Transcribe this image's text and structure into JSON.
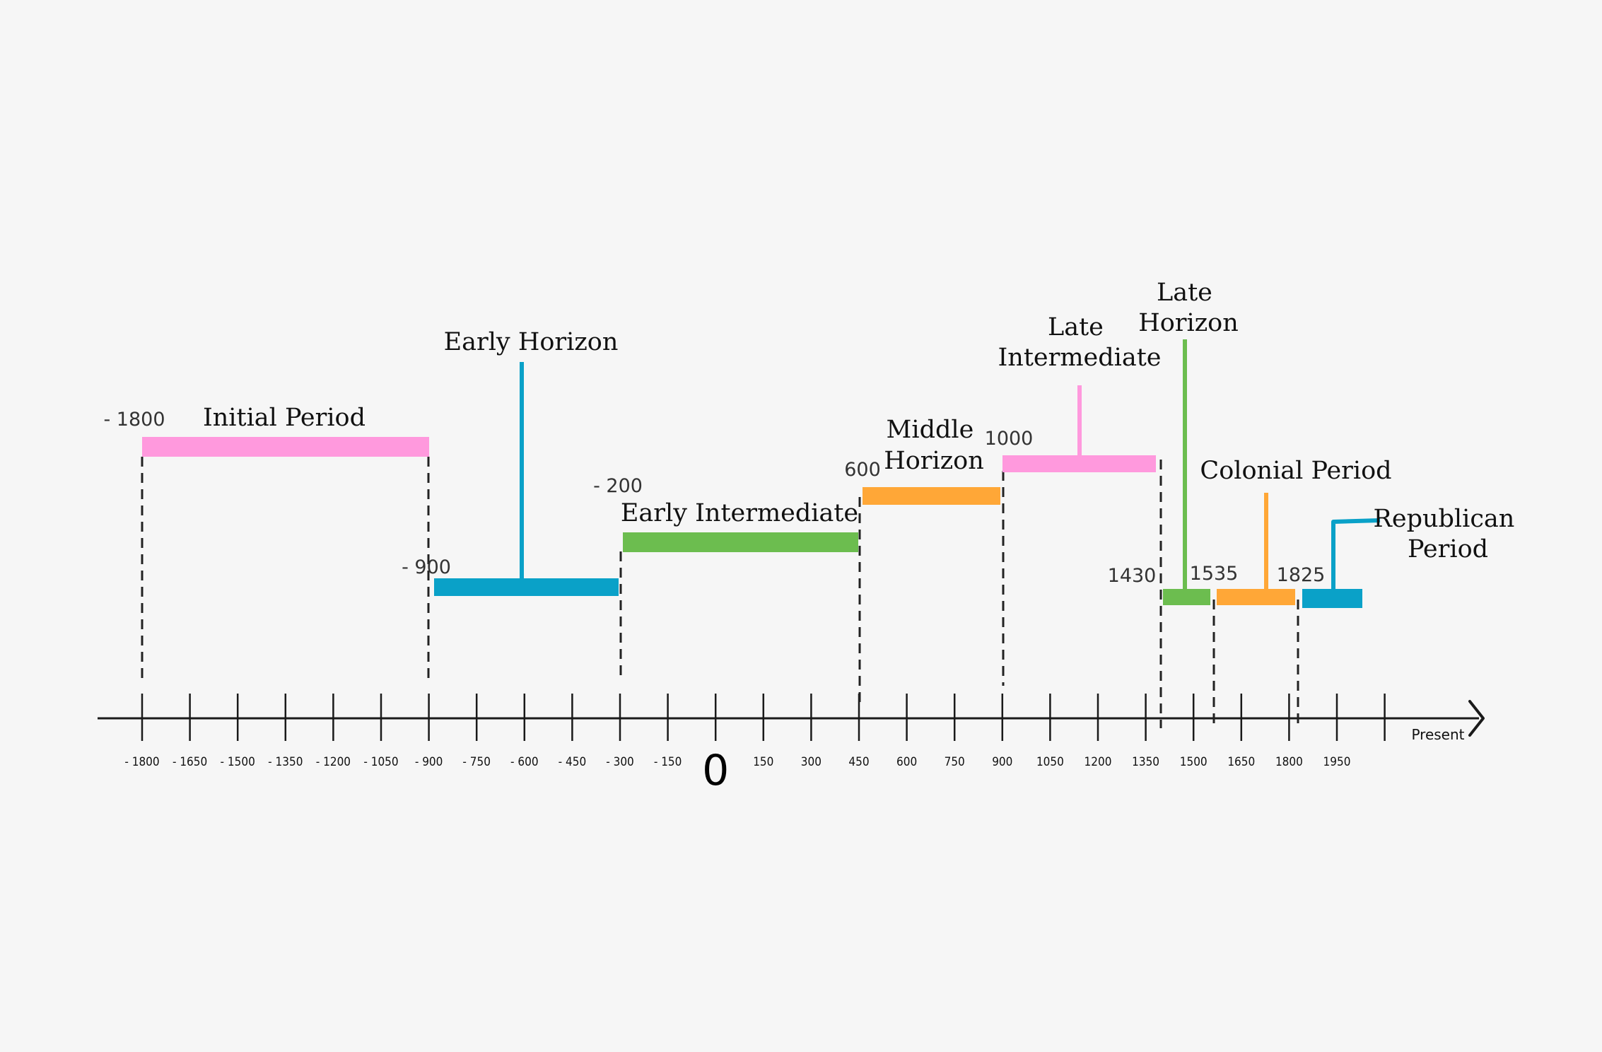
{
  "timeline": {
    "axis_ticks": [
      "- 1800",
      "- 1650",
      "- 1500",
      "- 1350",
      "- 1200",
      "- 1050",
      "- 900",
      "- 750",
      "- 600",
      "- 450",
      "- 300",
      "- 150",
      "0",
      "150",
      "300",
      "450",
      "600",
      "750",
      "900",
      "1050",
      "1200",
      "1350",
      "1500",
      "1650",
      "1800",
      "1950"
    ],
    "end_label": "Present",
    "periods": [
      {
        "name": "Initial Period",
        "start": -1800,
        "end": -900,
        "start_label": "- 1800",
        "color": "#ff99dd"
      },
      {
        "name": "Early Horizon",
        "start": -900,
        "end": -200,
        "start_label": "- 900",
        "color": "#0aa1c8"
      },
      {
        "name": "Early Intermediate",
        "start": -200,
        "end": 600,
        "start_label": "- 200",
        "color": "#6cbd4f"
      },
      {
        "name": "Middle Horizon",
        "start": 600,
        "end": 1000,
        "start_label": "600",
        "color": "#ffa737"
      },
      {
        "name": "Late Intermediate",
        "start": 1000,
        "end": 1430,
        "start_label": "1000",
        "color": "#ff99dd"
      },
      {
        "name": "Late Horizon",
        "start": 1430,
        "end": 1535,
        "start_label": "1430",
        "color": "#6cbd4f"
      },
      {
        "name": "Colonial Period",
        "start": 1535,
        "end": 1825,
        "start_label": "1535",
        "color": "#ffa737"
      },
      {
        "name": "Republican Period",
        "start": 1825,
        "end": null,
        "start_label": "1825",
        "color": "#0aa1c8"
      }
    ]
  }
}
